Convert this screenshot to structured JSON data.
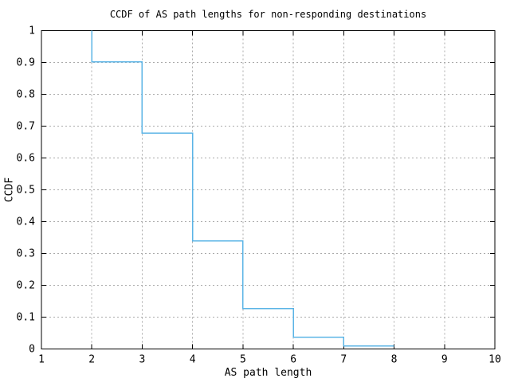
{
  "chart_data": {
    "type": "line",
    "style": "steps",
    "title": "CCDF of AS path lengths for non-responding destinations",
    "xlabel": "AS path length",
    "ylabel": "CCDF",
    "xlim": [
      1,
      10
    ],
    "ylim": [
      0,
      1
    ],
    "xticks": {
      "values": [
        1,
        2,
        3,
        4,
        5,
        6,
        7,
        8,
        9,
        10
      ],
      "labels": [
        "1",
        "2",
        "3",
        "4",
        "5",
        "6",
        "7",
        "8",
        "9",
        "10"
      ]
    },
    "yticks": {
      "values": [
        0,
        0.1,
        0.2,
        0.3,
        0.4,
        0.5,
        0.6,
        0.7,
        0.8,
        0.9,
        1
      ],
      "labels": [
        "0",
        "0.1",
        "0.2",
        "0.3",
        "0.4",
        "0.5",
        "0.6",
        "0.7",
        "0.8",
        "0.9",
        "1"
      ]
    },
    "grid": true,
    "legend": "none",
    "colors": {
      "line": "#5bb4e6",
      "grid": "#aaaaaa",
      "axis": "#000000",
      "background": "#ffffff"
    },
    "series": [
      {
        "name": "CCDF",
        "start_point": {
          "x": 2,
          "ccdf": 1.0
        },
        "ccdf_steps": [
          {
            "x_from": 2,
            "x_to": 3,
            "ccdf": 0.902
          },
          {
            "x_from": 3,
            "x_to": 4,
            "ccdf": 0.678
          },
          {
            "x_from": 4,
            "x_to": 5,
            "ccdf": 0.34
          },
          {
            "x_from": 5,
            "x_to": 6,
            "ccdf": 0.127
          },
          {
            "x_from": 6,
            "x_to": 7,
            "ccdf": 0.037
          },
          {
            "x_from": 7,
            "x_to": 8,
            "ccdf": 0.009
          }
        ]
      }
    ]
  }
}
